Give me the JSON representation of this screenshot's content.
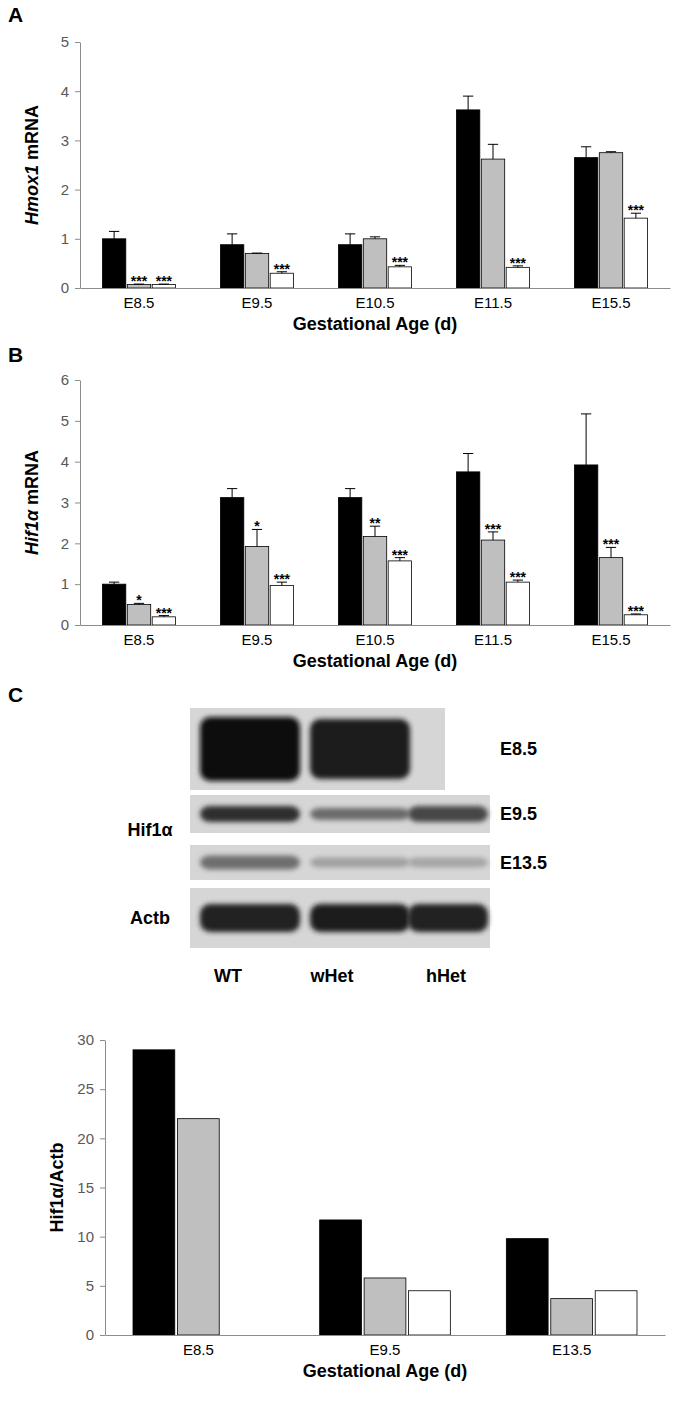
{
  "chart_data": [
    {
      "type": "bar",
      "panel": "A",
      "x_label": "Gestational Age (d)",
      "y_label": "Hmox1 mRNA",
      "categories": [
        "E8.5",
        "E9.5",
        "E10.5",
        "E11.5",
        "E15.5"
      ],
      "ylim": [
        0,
        5
      ],
      "yticks": [
        0,
        1,
        2,
        3,
        4,
        5
      ],
      "series": [
        {
          "color": "#000000",
          "values": [
            1.0,
            0.88,
            0.88,
            3.62,
            2.65
          ],
          "errors": [
            0.15,
            0.22,
            0.22,
            0.28,
            0.22
          ],
          "significance": [
            null,
            null,
            null,
            null,
            null
          ]
        },
        {
          "color": "#bfbfbf",
          "values": [
            0.07,
            0.7,
            1.0,
            2.62,
            2.75
          ],
          "errors": [
            0.01,
            0.01,
            0.04,
            0.3,
            0.02
          ],
          "significance": [
            "***",
            null,
            null,
            null,
            null
          ]
        },
        {
          "color": "#ffffff",
          "values": [
            0.07,
            0.3,
            0.43,
            0.42,
            1.42
          ],
          "errors": [
            0.01,
            0.03,
            0.03,
            0.03,
            0.1
          ],
          "significance": [
            "***",
            "***",
            "***",
            "***",
            "***"
          ]
        }
      ]
    },
    {
      "type": "bar",
      "panel": "B",
      "x_label": "Gestational Age (d)",
      "y_label": "Hif1α mRNA",
      "categories": [
        "E8.5",
        "E9.5",
        "E10.5",
        "E11.5",
        "E15.5"
      ],
      "ylim": [
        0,
        6
      ],
      "yticks": [
        0,
        1,
        2,
        3,
        4,
        5,
        6
      ],
      "series": [
        {
          "color": "#000000",
          "values": [
            1.0,
            3.12,
            3.12,
            3.75,
            3.92
          ],
          "errors": [
            0.05,
            0.22,
            0.22,
            0.45,
            1.25
          ],
          "significance": [
            null,
            null,
            null,
            null,
            null
          ]
        },
        {
          "color": "#bfbfbf",
          "values": [
            0.5,
            1.92,
            2.17,
            2.08,
            1.65
          ],
          "errors": [
            0.03,
            0.42,
            0.25,
            0.2,
            0.25
          ],
          "significance": [
            "*",
            "*",
            "**",
            "***",
            "***"
          ]
        },
        {
          "color": "#ffffff",
          "values": [
            0.2,
            0.97,
            1.57,
            1.05,
            0.25
          ],
          "errors": [
            0.03,
            0.08,
            0.08,
            0.05,
            0.02
          ],
          "significance": [
            "***",
            "***",
            "***",
            "***",
            "***"
          ]
        }
      ]
    },
    {
      "type": "bar",
      "panel": "C",
      "x_label": "Gestational Age (d)",
      "y_label": "Hif1α/Actb",
      "categories": [
        "E8.5",
        "E9.5",
        "E13.5"
      ],
      "ylim": [
        0,
        30
      ],
      "yticks": [
        0,
        5,
        10,
        15,
        20,
        25,
        30
      ],
      "series": [
        {
          "color": "#000000",
          "values": [
            29,
            11.7,
            9.8
          ]
        },
        {
          "color": "#bfbfbf",
          "values": [
            22,
            5.8,
            3.7
          ]
        },
        {
          "color": "#ffffff",
          "values": [
            null,
            4.5,
            4.5
          ]
        }
      ]
    }
  ],
  "blot": {
    "protein": "Hif1α",
    "loading_control": "Actb",
    "rows": [
      "E8.5",
      "E9.5",
      "E13.5"
    ],
    "lanes": [
      "WT",
      "wHet",
      "hHet"
    ]
  }
}
